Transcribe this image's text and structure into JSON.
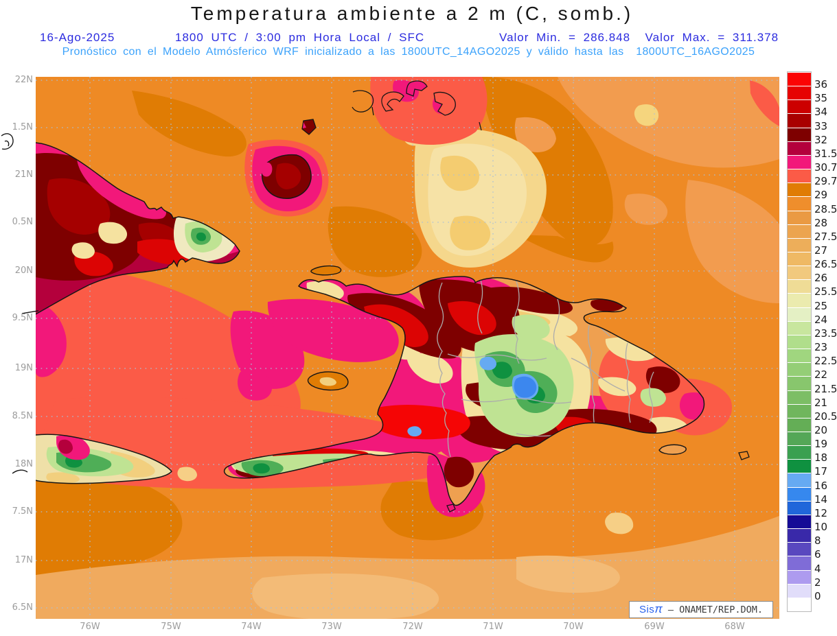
{
  "header": {
    "title": "Temperatura ambiente a 2 m (C, somb.)",
    "date": "16-Ago-2025",
    "time_line": "1800 UTC / 3:00 pm Hora Local / SFC",
    "valor_line": "Valor Min. = 286.848  Valor Max. = 311.378",
    "forecast_line": "Pronóstico con el Modelo Atmósferico WRF inicializado a las 1800UTC_14AGO2025 y válido hasta las  1800UTC_16AGO2025"
  },
  "axes": {
    "lat_labels": [
      "22N",
      "1.5N",
      "21N",
      "0.5N",
      "20N",
      "9.5N",
      "19N",
      "8.5N",
      "18N",
      "7.5N",
      "17N",
      "6.5N"
    ],
    "lon_labels": [
      "76W",
      "75W",
      "74W",
      "73W",
      "72W",
      "71W",
      "70W",
      "69W",
      "68W"
    ]
  },
  "colorbar": {
    "labels": [
      "36",
      "35",
      "34",
      "33",
      "32",
      "31.5",
      "30.7",
      "29.7",
      "29",
      "28.5",
      "28",
      "27.5",
      "27",
      "26.5",
      "26",
      "25.5",
      "25",
      "24",
      "23.5",
      "23",
      "22.5",
      "22",
      "21.5",
      "21",
      "20.5",
      "20",
      "19",
      "18",
      "17",
      "16",
      "14",
      "12",
      "10",
      "8",
      "6",
      "4",
      "2",
      "0"
    ],
    "cell_colors": [
      "#FB0404",
      "#E60202",
      "#CC0000",
      "#A90000",
      "#7E0000",
      "#B4003C",
      "#F2187A",
      "#FB5B47",
      "#E07C04",
      "#EF8E2C",
      "#EA9A43",
      "#ECA44F",
      "#EDAE5A",
      "#EFB964",
      "#F1C97E",
      "#EFDC96",
      "#EBEBAE",
      "#E4F0C4",
      "#C8E69E",
      "#B0DE8B",
      "#A0D67F",
      "#94CE76",
      "#88C66D",
      "#7CBE65",
      "#70B65D",
      "#64AE56",
      "#54A757",
      "#3AA050",
      "#0F9140",
      "#66AAF2",
      "#3688EE",
      "#2066DA",
      "#150B96",
      "#3929A9",
      "#5948BF",
      "#7F6CD7",
      "#AD9BEF",
      "#E1DDFA",
      "#FFFFFF"
    ]
  },
  "map_colors": {
    "sea_base": "#EE8A25",
    "sea_dark": "#E07C04",
    "sea_light": "#F29C4F",
    "sea_tan": "#F0AA5E",
    "sea_pale": "#F5D78C",
    "salmon": "#FB5B47",
    "magenta": "#F2187A",
    "crimson": "#B4003C",
    "red": "#DC0404",
    "dark_red": "#A50000",
    "maroon": "#7E0000",
    "cream": "#F5E2A0",
    "light_green": "#BFE393",
    "green": "#4FAE57",
    "deep_green": "#0F9140",
    "blue": "#3C87EE",
    "light_blue": "#66AAF2",
    "gridline": "#A9BFD8",
    "coastline": "#161616",
    "province_border": "#ACACAC"
  },
  "watermark": {
    "prefix": "Sis",
    "pi": "π",
    "suffix": " – ONAMET/REP.DOM."
  }
}
